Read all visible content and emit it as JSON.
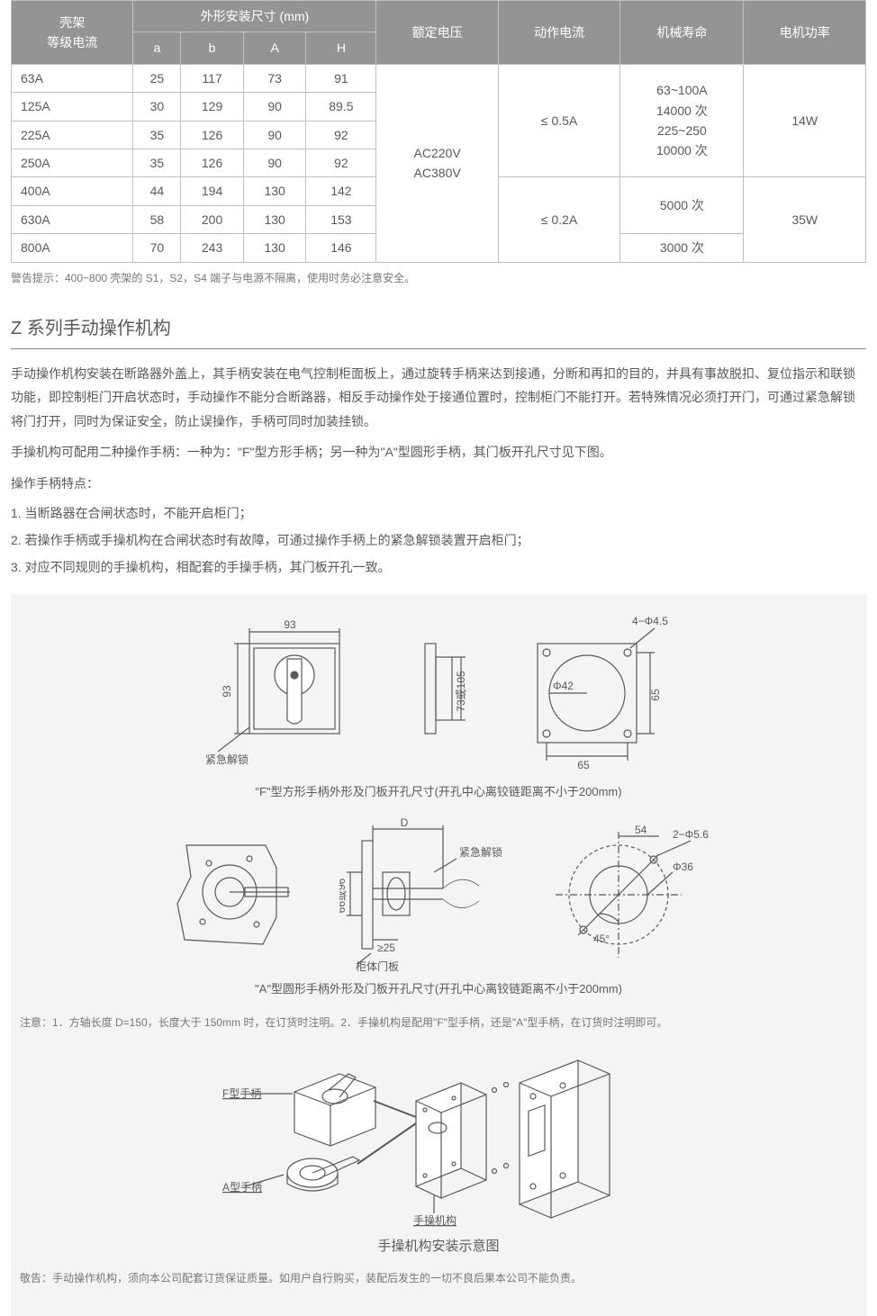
{
  "table": {
    "header_bg": "#949494",
    "header_fg": "#ffffff",
    "border_color": "#c0c0c0",
    "cell_fg": "#595959",
    "headers": {
      "shell": "壳架\n等级电流",
      "dims_group": "外形安装尺寸 (mm)",
      "a": "a",
      "b": "b",
      "A": "A",
      "H": "H",
      "voltage": "额定电压",
      "op_current": "动作电流",
      "life": "机械寿命",
      "power": "电机功率"
    },
    "rows": [
      {
        "shell": "63A",
        "a": "25",
        "b": "117",
        "A": "73",
        "H": "91"
      },
      {
        "shell": "125A",
        "a": "30",
        "b": "129",
        "A": "90",
        "H": "89.5"
      },
      {
        "shell": "225A",
        "a": "35",
        "b": "126",
        "A": "90",
        "H": "92"
      },
      {
        "shell": "250A",
        "a": "35",
        "b": "126",
        "A": "90",
        "H": "92"
      },
      {
        "shell": "400A",
        "a": "44",
        "b": "194",
        "A": "130",
        "H": "142"
      },
      {
        "shell": "630A",
        "a": "58",
        "b": "200",
        "A": "130",
        "H": "153"
      },
      {
        "shell": "800A",
        "a": "70",
        "b": "243",
        "A": "130",
        "H": "146"
      }
    ],
    "voltage_cell": "AC220V\nAC380V",
    "op_current_1": "≤ 0.5A",
    "op_current_2": "≤ 0.2A",
    "life_1": "63~100A\n14000 次\n225~250\n10000 次",
    "life_2": "5000 次",
    "life_3": "3000 次",
    "power_1": "14W",
    "power_2": "35W"
  },
  "warning": "警告提示：400~800 壳架的 S1，S2，S4 端子与电源不隔离，使用时务必注意安全。",
  "section_title": "Z 系列手动操作机构",
  "para1": "手动操作机构安装在断路器外盖上，其手柄安装在电气控制柜面板上，通过旋转手柄来达到接通，分断和再扣的目的，并具有事故脱扣、复位指示和联锁功能，即控制柜门开启状态时，手动操作不能分合断路器，相反手动操作处于接通位置时，控制柜门不能打开。若特殊情况必须打开门，可通过紧急解锁将门打开，同时为保证安全，防止误操作，手柄可同时加装挂锁。",
  "para2": "手操机构可配用二种操作手柄：一种为：\"F\"型方形手柄；另一种为\"A\"型圆形手柄，其门板开孔尺寸见下图。",
  "para3": "操作手柄特点：",
  "item1": "1. 当断路器在合闸状态时，不能开启柜门；",
  "item2": "2. 若操作手柄或手操机构在合闸状态时有故障，可通过操作手柄上的紧急解锁装置开启柜门；",
  "item3": "3. 对应不同规则的手操机构，相配套的手操手柄，其门板开孔一致。",
  "diagrams": {
    "f_type": {
      "caption": "\"F\"型方形手柄外形及门板开孔尺寸(开孔中心离铰链距离不小于200mm)",
      "labels": {
        "unlock": "紧急解锁",
        "w": "93",
        "h": "93",
        "depth": "73或105",
        "hole_d": "4−Φ4.5",
        "inner_d": "Φ42",
        "hole_w": "65",
        "hole_h": "65"
      }
    },
    "a_type": {
      "caption": "\"A\"型圆形手柄外形及门板开孔尺寸(开孔中心离铰链距离不小于200mm)",
      "labels": {
        "D": "D",
        "unlock": "紧急解锁",
        "depth": "66或96",
        "ge25": "≥25",
        "panel": "柜体门板",
        "outer_r": "54",
        "hole_d": "2−Φ5.6",
        "inner_d": "Φ36",
        "angle": "45°"
      }
    },
    "note": "注意：1．方轴长度 D=150，长度大于 150mm 时，在订货时注明。2．手操机构是配用\"F\"型手柄，还是\"A\"型手柄，在订货时注明即可。",
    "assembly": {
      "labels": {
        "f_handle": "F型手柄",
        "a_handle": "A型手柄",
        "mech": "手操机构"
      },
      "caption": "手操机构安装示意图"
    }
  },
  "disclaimer": "敬告：手动操作机构，须向本公司配套订货保证质量。如用户自行购买，装配后发生的一切不良后果本公司不能负责。",
  "colors": {
    "stroke": "#595959",
    "bg_gray": "#f4f4f4",
    "text": "#595959",
    "thin": "#707070"
  }
}
